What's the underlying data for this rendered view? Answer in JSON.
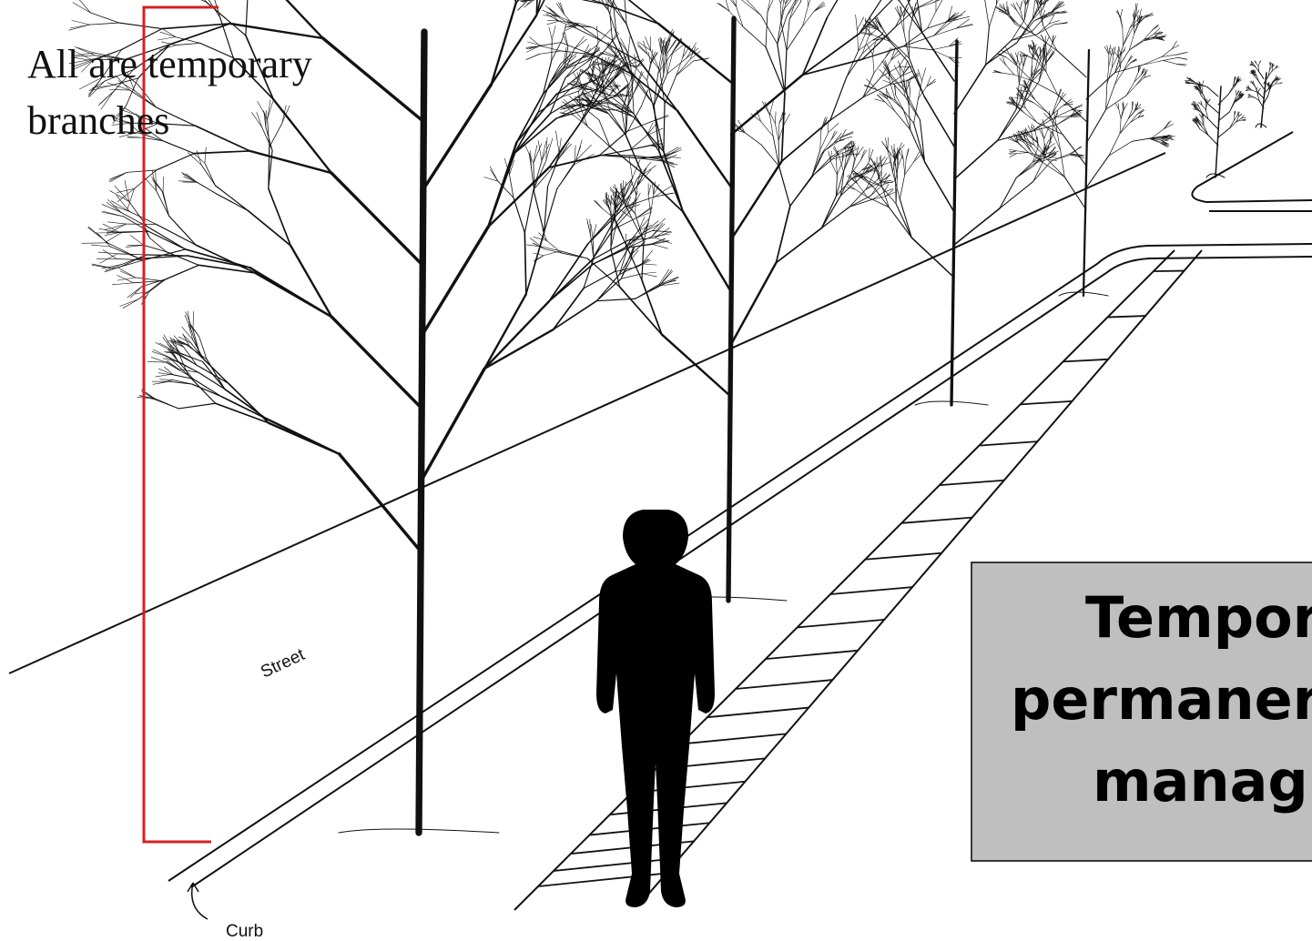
{
  "annotation": {
    "line1": "All are temporary",
    "line2": "branches"
  },
  "labels": {
    "street": "Street",
    "curb": "Curb"
  },
  "callout": {
    "lines": [
      "Tempor",
      "permaner",
      "manag"
    ]
  }
}
